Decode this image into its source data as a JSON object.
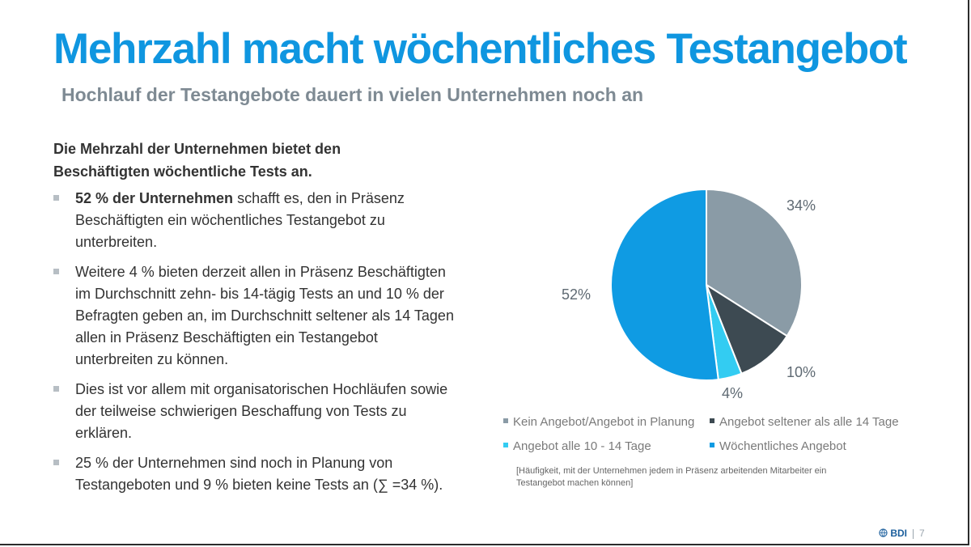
{
  "header": {
    "title": "Mehrzahl macht wöchentliches Testangebot",
    "subtitle": "Hochlauf der Testangebote dauert in vielen Unternehmen noch an"
  },
  "left": {
    "lead": "Die Mehrzahl der Unternehmen bietet den Beschäftigten wöchentliche Tests an.",
    "bullets": [
      {
        "bold": "52 % der Unternehmen",
        "text": " schafft es, den in Präsenz Beschäftigten ein wöchentliches Testangebot zu unterbreiten."
      },
      {
        "bold": "",
        "text": "Weitere 4 % bieten derzeit allen in Präsenz Beschäftigten im Durchschnitt zehn- bis 14-tägig Tests an und 10 % der Befragten geben an, im Durchschnitt seltener als 14 Tagen allen in Präsenz Beschäftigten ein Testangebot unterbreiten zu können."
      },
      {
        "bold": "",
        "text": "Dies ist vor allem mit organisatorischen Hochläufen sowie der teilweise schwierigen Beschaffung von Tests zu erklären."
      },
      {
        "bold": "",
        "text": "25 % der Unternehmen sind noch in Planung von Testangeboten und 9 % bieten keine Tests an (∑ =34 %)."
      }
    ]
  },
  "chart_data": {
    "type": "pie",
    "title": "",
    "slices": [
      {
        "name": "Kein Angebot/Angebot in Planung",
        "value": 34,
        "label": "34%",
        "color": "#8a9ba6"
      },
      {
        "name": "Angebot seltener als alle 14 Tage",
        "value": 10,
        "label": "10%",
        "color": "#3d4a52"
      },
      {
        "name": "Angebot alle 10 - 14 Tage",
        "value": 4,
        "label": "4%",
        "color": "#33ccf2"
      },
      {
        "name": "Wöchentliches Angebot",
        "value": 52,
        "label": "52%",
        "color": "#0f9be3"
      }
    ],
    "legend_placement": "bottom"
  },
  "footnote": "[Häufigkeit, mit der Unternehmen jedem in Präsenz arbeitenden Mitarbeiter ein Testangebot machen können]",
  "footer": {
    "brand": "BDI",
    "page_number": "7"
  }
}
